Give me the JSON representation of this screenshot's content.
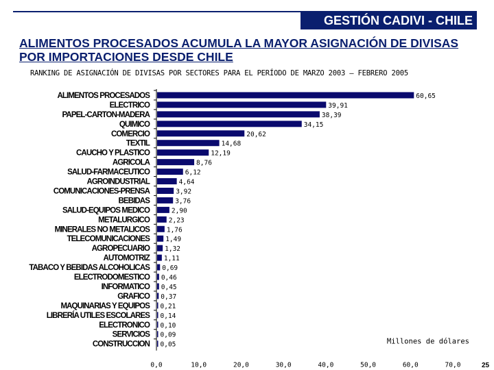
{
  "header": {
    "label": "GESTIÓN CADIVI - CHILE"
  },
  "title": "ALIMENTOS PROCESADOS ACUMULA LA MAYOR ASIGNACIÓN DE DIVISAS POR IMPORTACIONES DESDE CHILE",
  "page_number": "25",
  "colors": {
    "bar": "#0a0a6e",
    "brand": "#0a1f6e"
  },
  "chart_data": {
    "type": "bar",
    "orientation": "horizontal",
    "title": "RANKING DE ASIGNACIÓN DE DIVISAS POR SECTORES PARA EL PERÍODO DE MARZO 2003 – FEBRERO 2005",
    "unit_label": "Millones de dólares",
    "xlim": [
      0,
      70
    ],
    "xticks": [
      "0,0",
      "10,0",
      "20,0",
      "30,0",
      "40,0",
      "50,0",
      "60,0",
      "70,0"
    ],
    "grid": false,
    "categories": [
      "ALIMENTOS PROCESADOS",
      "ELECTRICO",
      "PAPEL-CARTON-MADERA",
      "QUIMICO",
      "COMERCIO",
      "TEXTIL",
      "CAUCHO Y PLASTICO",
      "AGRICOLA",
      "SALUD-FARMACEUTICO",
      "AGROINDUSTRIAL",
      "COMUNICACIONES-PRENSA",
      "BEBIDAS",
      "SALUD-EQUIPOS MEDICO",
      "METALURGICO",
      "MINERALES NO METALICOS",
      "TELECOMUNICACIONES",
      "AGROPECUARIO",
      "AUTOMOTRIZ",
      "TABACO Y BEBIDAS ALCOHOLICAS",
      "ELECTRODOMESTICO",
      "INFORMATICO",
      "GRAFICO",
      "MAQUINARIAS Y EQUIPOS",
      "LIBRERÍA UTILES ESCOLARES",
      "ELECTRONICO",
      "SERVICIOS",
      "CONSTRUCCION"
    ],
    "values": [
      60.65,
      39.91,
      38.39,
      34.15,
      20.62,
      14.68,
      12.19,
      8.76,
      6.12,
      4.64,
      3.92,
      3.76,
      2.9,
      2.23,
      1.76,
      1.49,
      1.32,
      1.11,
      0.69,
      0.46,
      0.45,
      0.37,
      0.21,
      0.14,
      0.1,
      0.09,
      0.05
    ],
    "value_labels": [
      "60,65",
      "39,91",
      "38,39",
      "34,15",
      "20,62",
      "14,68",
      "12,19",
      "8,76",
      "6,12",
      "4,64",
      "3,92",
      "3,76",
      "2,90",
      "2,23",
      "1,76",
      "1,49",
      "1,32",
      "1,11",
      "0,69",
      "0,46",
      "0,45",
      "0,37",
      "0,21",
      "0,14",
      "0,10",
      "0,09",
      "0,05"
    ]
  }
}
